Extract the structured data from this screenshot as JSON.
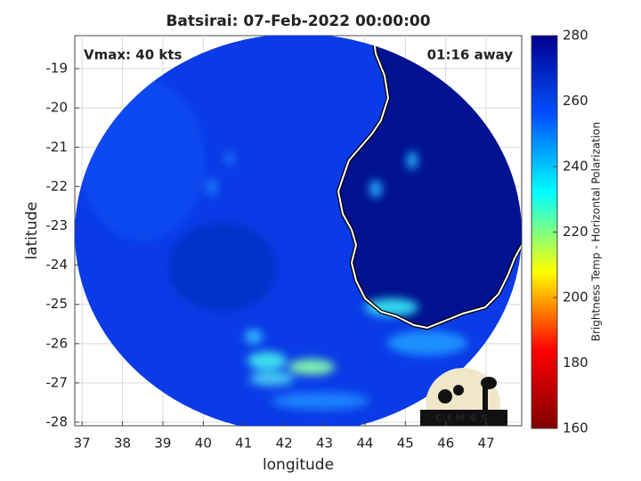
{
  "title": "Batsirai: 07-Feb-2022 00:00:00",
  "annotations": {
    "left": "Vmax: 40 kts",
    "right": "01:16 away"
  },
  "map": {
    "xlabel": "longitude",
    "ylabel": "latitude",
    "xlim": [
      36.82,
      47.88
    ],
    "ylim": [
      -28.09,
      -18.16
    ],
    "xticks": [
      37,
      38,
      39,
      40,
      41,
      42,
      43,
      44,
      45,
      46,
      47
    ],
    "yticks": [
      -19,
      -20,
      -21,
      -22,
      -23,
      -24,
      -25,
      -26,
      -27,
      -28
    ],
    "grid": true
  },
  "colorbar": {
    "label": "Brightness Temp - Horizontal Polarization",
    "lim": [
      160,
      280
    ],
    "ticks": [
      160,
      180,
      200,
      220,
      240,
      260,
      280
    ],
    "colors": [
      "#800000",
      "#ff0000",
      "#ffff00",
      "#00ffff",
      "#0050ff",
      "#00008f"
    ]
  },
  "logo": "CIMSS"
}
